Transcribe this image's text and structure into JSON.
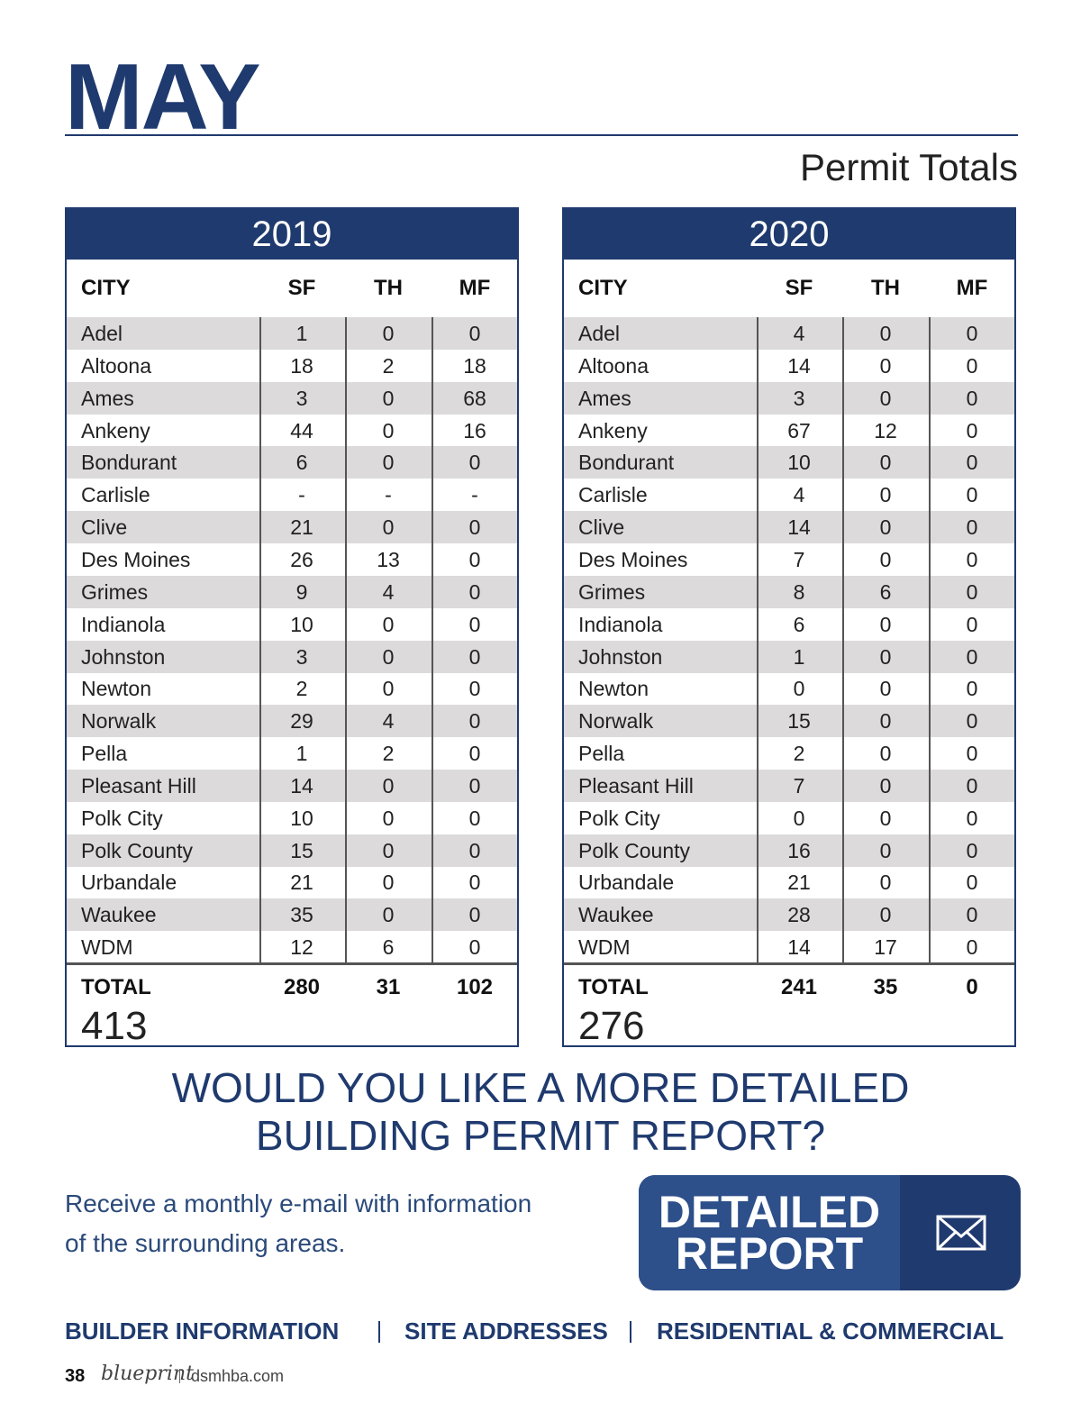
{
  "header": {
    "title": "MAY",
    "subtitle": "Permit Totals"
  },
  "tables": [
    {
      "year": "2019",
      "columns": [
        "CITY",
        "SF",
        "TH",
        "MF"
      ],
      "rows": [
        [
          "Adel",
          "1",
          "0",
          "0"
        ],
        [
          "Altoona",
          "18",
          "2",
          "18"
        ],
        [
          "Ames",
          "3",
          "0",
          "68"
        ],
        [
          "Ankeny",
          "44",
          "0",
          "16"
        ],
        [
          "Bondurant",
          "6",
          "0",
          "0"
        ],
        [
          "Carlisle",
          "-",
          "-",
          "-"
        ],
        [
          "Clive",
          "21",
          "0",
          "0"
        ],
        [
          "Des Moines",
          "26",
          "13",
          "0"
        ],
        [
          "Grimes",
          "9",
          "4",
          "0"
        ],
        [
          "Indianola",
          "10",
          "0",
          "0"
        ],
        [
          "Johnston",
          "3",
          "0",
          "0"
        ],
        [
          "Newton",
          "2",
          "0",
          "0"
        ],
        [
          "Norwalk",
          "29",
          "4",
          "0"
        ],
        [
          "Pella",
          "1",
          "2",
          "0"
        ],
        [
          "Pleasant Hill",
          "14",
          "0",
          "0"
        ],
        [
          "Polk City",
          "10",
          "0",
          "0"
        ],
        [
          "Polk County",
          "15",
          "0",
          "0"
        ],
        [
          "Urbandale",
          "21",
          "0",
          "0"
        ],
        [
          "Waukee",
          "35",
          "0",
          "0"
        ],
        [
          "WDM",
          "12",
          "6",
          "0"
        ]
      ],
      "total_label": "TOTAL",
      "totals": [
        "280",
        "31",
        "102"
      ],
      "grand_total": "413"
    },
    {
      "year": "2020",
      "columns": [
        "CITY",
        "SF",
        "TH",
        "MF"
      ],
      "rows": [
        [
          "Adel",
          "4",
          "0",
          "0"
        ],
        [
          "Altoona",
          "14",
          "0",
          "0"
        ],
        [
          "Ames",
          "3",
          "0",
          "0"
        ],
        [
          "Ankeny",
          "67",
          "12",
          "0"
        ],
        [
          "Bondurant",
          "10",
          "0",
          "0"
        ],
        [
          "Carlisle",
          "4",
          "0",
          "0"
        ],
        [
          "Clive",
          "14",
          "0",
          "0"
        ],
        [
          "Des Moines",
          "7",
          "0",
          "0"
        ],
        [
          "Grimes",
          "8",
          "6",
          "0"
        ],
        [
          "Indianola",
          "6",
          "0",
          "0"
        ],
        [
          "Johnston",
          "1",
          "0",
          "0"
        ],
        [
          "Newton",
          "0",
          "0",
          "0"
        ],
        [
          "Norwalk",
          "15",
          "0",
          "0"
        ],
        [
          "Pella",
          "2",
          "0",
          "0"
        ],
        [
          "Pleasant Hill",
          "7",
          "0",
          "0"
        ],
        [
          "Polk City",
          "0",
          "0",
          "0"
        ],
        [
          "Polk County",
          "16",
          "0",
          "0"
        ],
        [
          "Urbandale",
          "21",
          "0",
          "0"
        ],
        [
          "Waukee",
          "28",
          "0",
          "0"
        ],
        [
          "WDM",
          "14",
          "17",
          "0"
        ]
      ],
      "total_label": "TOTAL",
      "totals": [
        "241",
        "35",
        "0"
      ],
      "grand_total": "276"
    }
  ],
  "cta": {
    "heading": [
      "WOULD YOU LIKE A MORE DETAILED",
      "BUILDING PERMIT REPORT?"
    ],
    "text": [
      "Receive a monthly e-mail with information",
      "of the surrounding areas."
    ],
    "button": [
      "DETAILED",
      "REPORT"
    ]
  },
  "footer": {
    "links": [
      "BUILDER INFORMATION",
      "SITE ADDRESSES",
      "RESIDENTIAL & COMMERCIAL"
    ],
    "page_number": "38",
    "brand": "blueprint",
    "url": "dsmhba.com"
  }
}
